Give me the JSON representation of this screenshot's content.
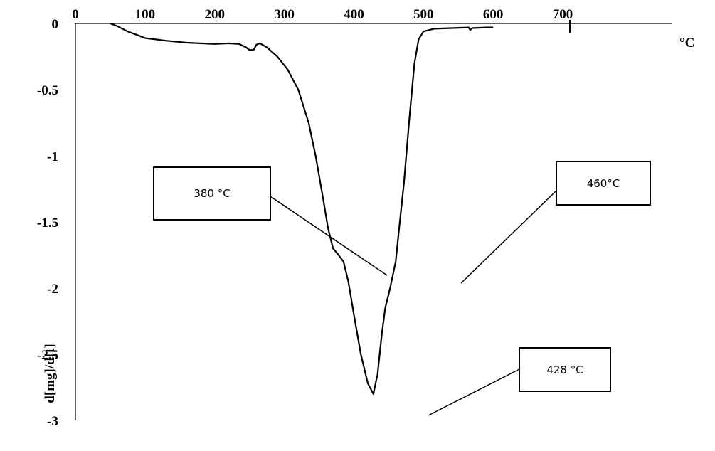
{
  "chart_data": {
    "type": "line",
    "title": "",
    "xlabel": "°C",
    "ylabel": "d[mg]/d[t]",
    "xlim": [
      0,
      700
    ],
    "ylim": [
      -3,
      0
    ],
    "x_ticks": [
      "0",
      "100",
      "200",
      "300",
      "400",
      "500",
      "600",
      "700"
    ],
    "y_ticks": [
      "0",
      "-0.5",
      "-1",
      "-1.5",
      "-2",
      "-2.5",
      "-3"
    ],
    "x_tick_values": [
      0,
      100,
      200,
      300,
      400,
      500,
      600,
      700
    ],
    "y_tick_values": [
      0,
      -0.5,
      -1,
      -1.5,
      -2,
      -2.5,
      -3
    ],
    "grid": false,
    "legend": "none",
    "series": [
      {
        "color": "#000000",
        "points": [
          [
            50,
            0.0
          ],
          [
            60,
            -0.02
          ],
          [
            75,
            -0.06
          ],
          [
            90,
            -0.09
          ],
          [
            100,
            -0.11
          ],
          [
            130,
            -0.13
          ],
          [
            160,
            -0.145
          ],
          [
            200,
            -0.155
          ],
          [
            220,
            -0.15
          ],
          [
            235,
            -0.155
          ],
          [
            245,
            -0.18
          ],
          [
            250,
            -0.2
          ],
          [
            256,
            -0.2
          ],
          [
            260,
            -0.16
          ],
          [
            265,
            -0.15
          ],
          [
            275,
            -0.18
          ],
          [
            290,
            -0.25
          ],
          [
            305,
            -0.35
          ],
          [
            320,
            -0.5
          ],
          [
            335,
            -0.75
          ],
          [
            345,
            -1.0
          ],
          [
            355,
            -1.3
          ],
          [
            363,
            -1.55
          ],
          [
            370,
            -1.7
          ],
          [
            378,
            -1.75
          ],
          [
            385,
            -1.8
          ],
          [
            392,
            -1.95
          ],
          [
            400,
            -2.2
          ],
          [
            410,
            -2.5
          ],
          [
            420,
            -2.72
          ],
          [
            428,
            -2.8
          ],
          [
            434,
            -2.65
          ],
          [
            440,
            -2.35
          ],
          [
            445,
            -2.15
          ],
          [
            452,
            -2.0
          ],
          [
            460,
            -1.8
          ],
          [
            465,
            -1.55
          ],
          [
            472,
            -1.2
          ],
          [
            480,
            -0.7
          ],
          [
            487,
            -0.3
          ],
          [
            493,
            -0.12
          ],
          [
            500,
            -0.06
          ],
          [
            515,
            -0.04
          ],
          [
            540,
            -0.035
          ],
          [
            565,
            -0.03
          ],
          [
            567,
            -0.05
          ],
          [
            570,
            -0.035
          ],
          [
            590,
            -0.03
          ],
          [
            600,
            -0.03
          ]
        ]
      }
    ],
    "annotations": [
      {
        "label": "380 °C",
        "x": 378,
        "y": -1.75
      },
      {
        "label": "428 °C",
        "x": 428,
        "y": -2.8
      },
      {
        "label": "460°C",
        "x": 460,
        "y": -1.8
      }
    ]
  }
}
